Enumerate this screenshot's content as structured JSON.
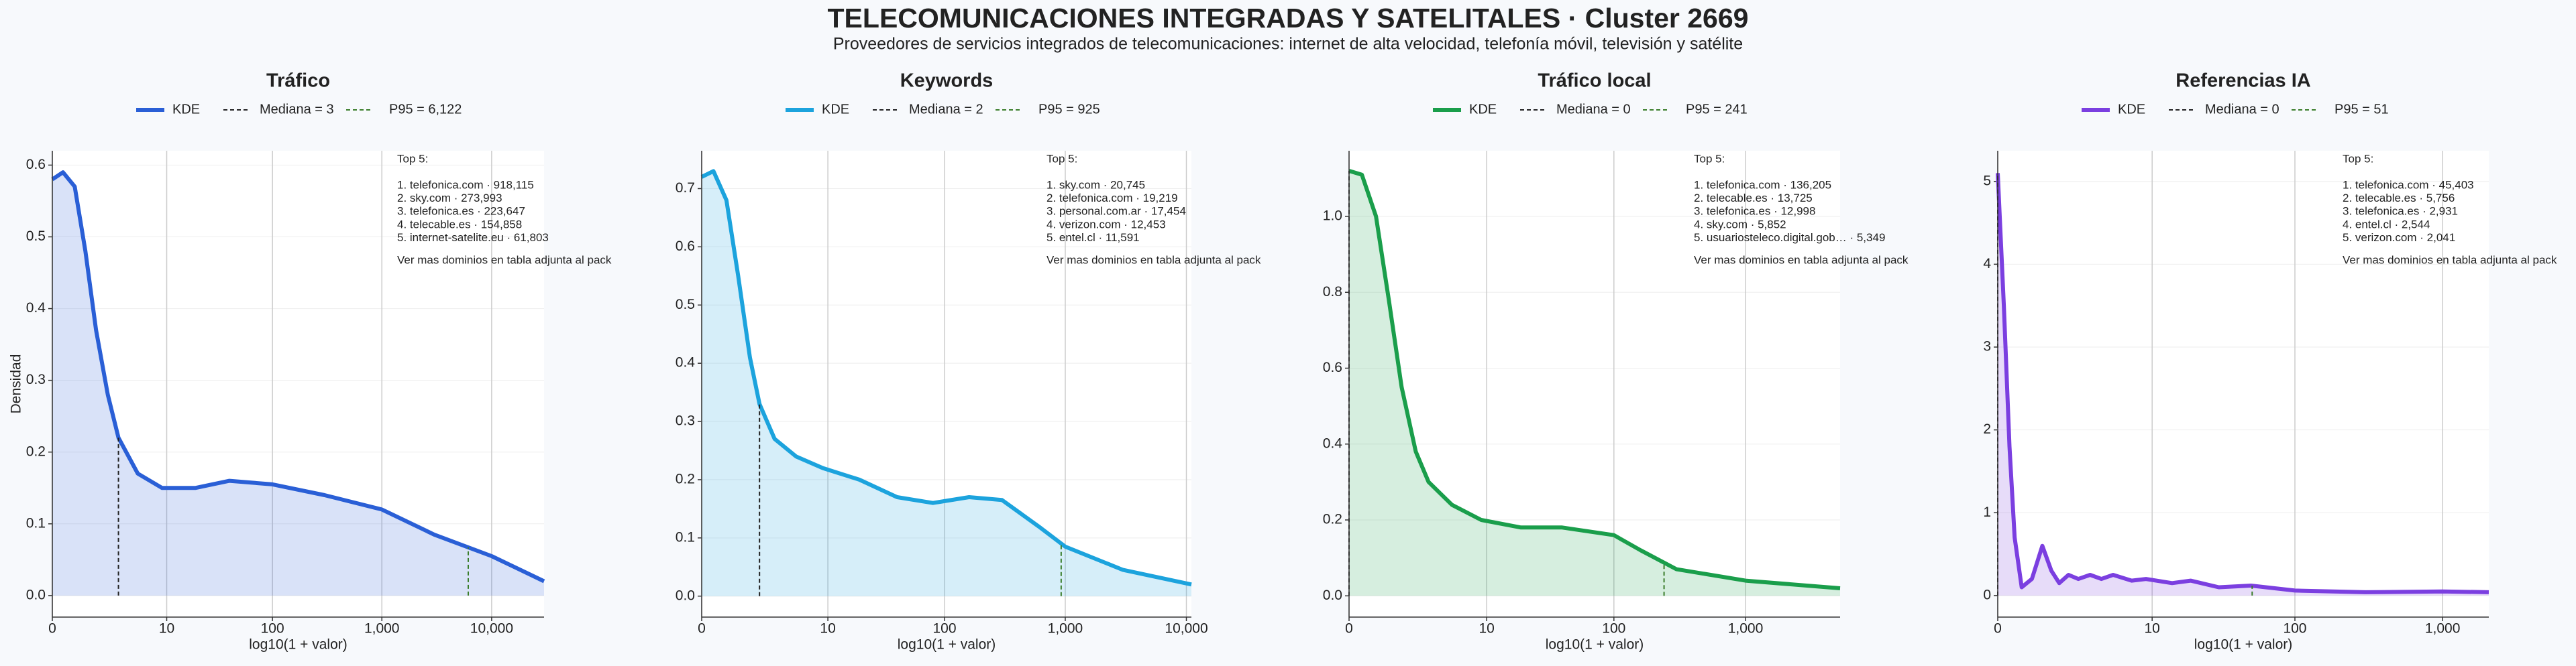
{
  "title": "TELECOMUNICACIONES INTEGRADAS Y SATELITALES · Cluster 2669",
  "subtitle": "Proveedores de servicios integrados de telecomunicaciones: internet de alta velocidad, telefonía móvil, televisión y satélite",
  "chart_data": [
    {
      "type": "area",
      "title": "Tráfico",
      "xlabel": "log10(1 + valor)",
      "ylabel": "Densidad",
      "xscale": "log1p",
      "x": [
        0,
        0.25,
        0.6,
        1,
        1.5,
        2.2,
        3,
        5,
        9,
        19,
        40,
        100,
        300,
        1000,
        3000,
        10000,
        30000
      ],
      "series": [
        {
          "name": "KDE",
          "color": "#2a5fd6",
          "values": [
            0.58,
            0.59,
            0.57,
            0.48,
            0.37,
            0.28,
            0.22,
            0.17,
            0.15,
            0.15,
            0.16,
            0.155,
            0.14,
            0.12,
            0.085,
            0.055,
            0.02
          ]
        }
      ],
      "median": 3,
      "median_label": "Mediana = 3",
      "p95": 6122,
      "p95_label": "P95 = 6,122",
      "xlim": [
        0,
        30000
      ],
      "ylim": [
        -0.03,
        0.62
      ],
      "xticks": [
        0,
        10,
        100,
        {
          "value": 1000,
          "label": "1,000"
        },
        {
          "value": 10000,
          "label": "10,000"
        }
      ],
      "yticks": [
        {
          "value": 0,
          "label": "0.0"
        },
        0.1,
        0.2,
        0.3,
        0.4,
        0.5,
        0.6
      ],
      "annotation": {
        "heading": "Top 5:",
        "items": [
          "1. telefonica.com · 918,115",
          "2. sky.com · 273,993",
          "3. telefonica.es · 223,647",
          "4. telecable.es · 154,858",
          "5. internet-satelite.eu · 61,803"
        ],
        "footer": "Ver mas dominios en tabla adjunta al pack"
      }
    },
    {
      "type": "area",
      "title": "Keywords",
      "xlabel": "log10(1 + valor)",
      "xscale": "log1p",
      "x": [
        0,
        0.25,
        0.6,
        1,
        1.5,
        2,
        3,
        5,
        9,
        19,
        40,
        80,
        160,
        300,
        600,
        1000,
        3000,
        11000
      ],
      "series": [
        {
          "name": "KDE",
          "color": "#1ca3dd",
          "values": [
            0.72,
            0.73,
            0.68,
            0.55,
            0.41,
            0.33,
            0.27,
            0.24,
            0.22,
            0.2,
            0.17,
            0.16,
            0.17,
            0.165,
            0.12,
            0.085,
            0.045,
            0.02
          ]
        }
      ],
      "median": 2,
      "median_label": "Mediana = 2",
      "p95": 925,
      "p95_label": "P95 = 925",
      "xlim": [
        0,
        11000
      ],
      "ylim": [
        -0.036,
        0.765
      ],
      "xticks": [
        0,
        10,
        100,
        {
          "value": 1000,
          "label": "1,000"
        },
        {
          "value": 10000,
          "label": "10,000"
        }
      ],
      "yticks": [
        {
          "value": 0,
          "label": "0.0"
        },
        0.1,
        0.2,
        0.3,
        0.4,
        0.5,
        0.6,
        0.7
      ],
      "annotation": {
        "heading": "Top 5:",
        "items": [
          "1. sky.com · 20,745",
          "2. telefonica.com · 19,219",
          "3. personal.com.ar · 17,454",
          "4. verizon.com · 12,453",
          "5. entel.cl · 11,591"
        ],
        "footer": "Ver mas dominios en tabla adjunta al pack"
      }
    },
    {
      "type": "area",
      "title": "Tráfico local",
      "xlabel": "log10(1 + valor)",
      "xscale": "log1p",
      "x": [
        0,
        0.25,
        0.6,
        1,
        1.5,
        2.2,
        3,
        5,
        9,
        19,
        40,
        100,
        160,
        300,
        1000,
        5200
      ],
      "series": [
        {
          "name": "KDE",
          "color": "#1a9e4b",
          "values": [
            1.12,
            1.11,
            1.0,
            0.78,
            0.55,
            0.38,
            0.3,
            0.24,
            0.2,
            0.18,
            0.18,
            0.16,
            0.12,
            0.07,
            0.04,
            0.02
          ]
        }
      ],
      "median": 0,
      "median_label": "Mediana = 0",
      "p95": 241,
      "p95_label": "P95 = 241",
      "xlim": [
        0,
        5200
      ],
      "ylim": [
        -0.056,
        1.173
      ],
      "xticks": [
        0,
        10,
        100,
        {
          "value": 1000,
          "label": "1,000"
        }
      ],
      "yticks": [
        {
          "value": 0,
          "label": "0.0"
        },
        0.2,
        0.4,
        0.6,
        0.8,
        {
          "value": 1,
          "label": "1.0"
        }
      ],
      "annotation": {
        "heading": "Top 5:",
        "items": [
          "1. telefonica.com · 136,205",
          "2. telecable.es · 13,725",
          "3. telefonica.es · 12,998",
          "4. sky.com · 5,852",
          "5. usuariosteleco.digital.gob… · 5,349"
        ],
        "footer": "Ver mas dominios en tabla adjunta al pack"
      }
    },
    {
      "type": "area",
      "title": "Referencias IA",
      "xlabel": "log10(1 + valor)",
      "xscale": "log1p",
      "x": [
        0,
        0.1,
        0.2,
        0.3,
        0.45,
        0.7,
        1,
        1.3,
        1.6,
        2,
        2.5,
        3.2,
        4,
        5,
        7,
        9,
        14,
        19,
        30,
        50,
        100,
        300,
        1000,
        2050
      ],
      "series": [
        {
          "name": "KDE",
          "color": "#7b3fe0",
          "values": [
            5.1,
            3.5,
            1.8,
            0.7,
            0.1,
            0.2,
            0.6,
            0.3,
            0.15,
            0.25,
            0.2,
            0.25,
            0.2,
            0.25,
            0.18,
            0.2,
            0.15,
            0.18,
            0.1,
            0.12,
            0.06,
            0.04,
            0.05,
            0.04
          ]
        }
      ],
      "median": 0,
      "median_label": "Mediana = 0",
      "p95": 51,
      "p95_label": "P95 = 51",
      "xlim": [
        0,
        2050
      ],
      "ylim": [
        -0.26,
        5.37
      ],
      "xticks": [
        0,
        10,
        100,
        {
          "value": 1000,
          "label": "1,000"
        }
      ],
      "yticks": [
        0,
        1,
        2,
        3,
        4,
        5
      ],
      "annotation": {
        "heading": "Top 5:",
        "items": [
          "1. telefonica.com · 45,403",
          "2. telecable.es · 5,756",
          "3. telefonica.es · 2,931",
          "4. entel.cl · 2,544",
          "5. verizon.com · 2,041"
        ],
        "footer": "Ver mas dominios en tabla adjunta al pack"
      }
    }
  ]
}
